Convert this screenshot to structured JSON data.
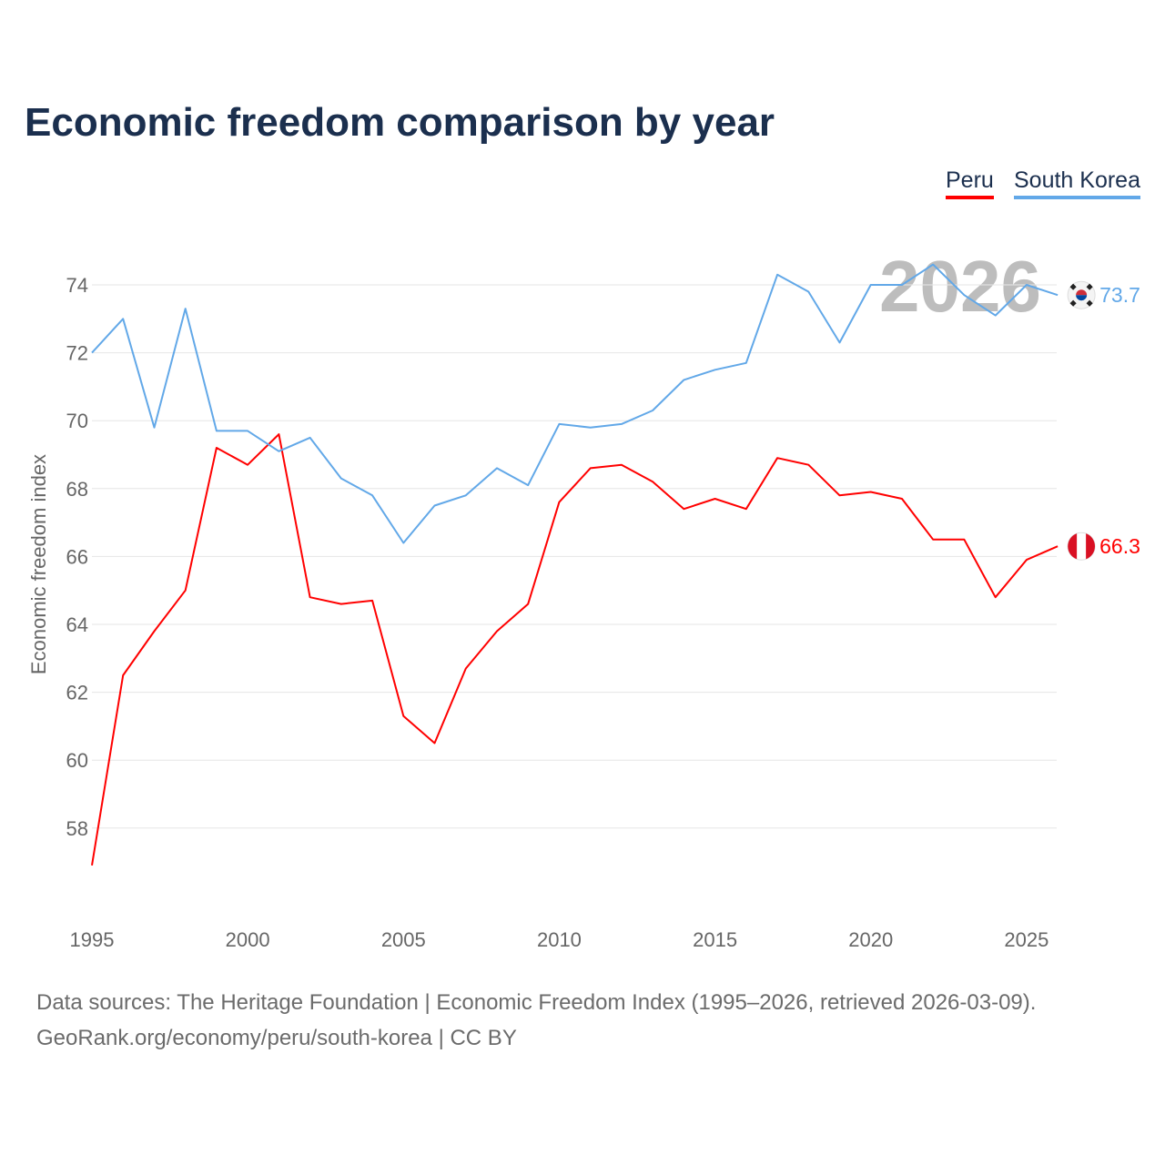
{
  "chart_data": {
    "type": "line",
    "title": "Economic freedom comparison by year",
    "xlabel": "",
    "ylabel": "Economic freedom index",
    "x": [
      1995,
      1996,
      1997,
      1998,
      1999,
      2000,
      2001,
      2002,
      2003,
      2004,
      2005,
      2006,
      2007,
      2008,
      2009,
      2010,
      2011,
      2012,
      2013,
      2014,
      2015,
      2016,
      2017,
      2018,
      2019,
      2020,
      2021,
      2022,
      2023,
      2024,
      2025,
      2026
    ],
    "xticks": [
      "1995",
      "2000",
      "2005",
      "2010",
      "2015",
      "2020",
      "2025"
    ],
    "yticks": [
      "58",
      "60",
      "62",
      "64",
      "66",
      "68",
      "70",
      "72",
      "74"
    ],
    "ylim": [
      56.5,
      75.5
    ],
    "xlim": [
      1995,
      2026
    ],
    "grid": true,
    "legend_placement": "top-right",
    "watermark_year": "2026",
    "series": [
      {
        "name": "Peru",
        "color": "#ff0000",
        "end_label": "66.3",
        "values": [
          56.9,
          62.5,
          63.8,
          65.0,
          69.2,
          68.7,
          69.6,
          64.8,
          64.6,
          64.7,
          61.3,
          60.5,
          62.7,
          63.8,
          64.6,
          67.6,
          68.6,
          68.7,
          68.2,
          67.4,
          67.7,
          67.4,
          68.9,
          68.7,
          67.8,
          67.9,
          67.7,
          66.5,
          66.5,
          64.8,
          65.9,
          66.3
        ]
      },
      {
        "name": "South Korea",
        "color": "#62a8e8",
        "end_label": "73.7",
        "values": [
          72.0,
          73.0,
          69.8,
          73.3,
          69.7,
          69.7,
          69.1,
          69.5,
          68.3,
          67.8,
          66.4,
          67.5,
          67.8,
          68.6,
          68.1,
          69.9,
          69.8,
          69.9,
          70.3,
          71.2,
          71.5,
          71.7,
          74.3,
          73.8,
          72.3,
          74.0,
          74.0,
          74.6,
          73.7,
          73.1,
          74.0,
          73.7
        ]
      }
    ]
  },
  "footer": {
    "line1": "Data sources: The Heritage Foundation | Economic Freedom Index (1995–2026, retrieved 2026-03-09).",
    "line2": "GeoRank.org/economy/peru/south-korea | CC BY"
  }
}
